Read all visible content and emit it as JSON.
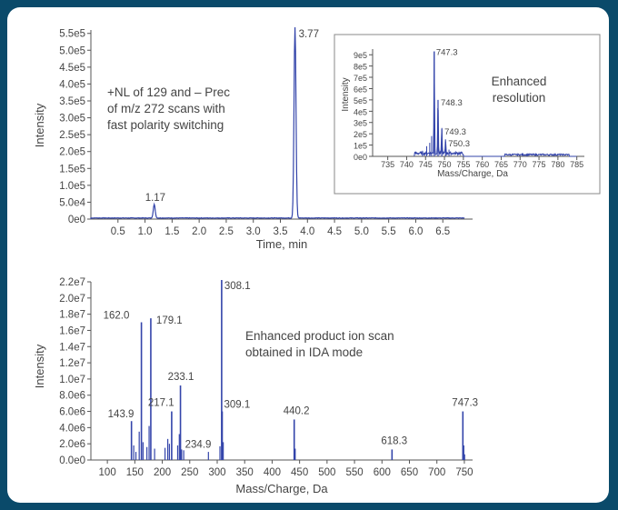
{
  "chart_data": [
    {
      "type": "line",
      "xlabel": "Time, min",
      "ylabel": "Intensity",
      "xlim": [
        0.0,
        7.05
      ],
      "ylim": [
        0,
        560000
      ],
      "xticks": [
        "0.5",
        "1.0",
        "1.5",
        "2.0",
        "2.5",
        "3.0",
        "3.5",
        "4.0",
        "4.5",
        "5.0",
        "5.5",
        "6.0",
        "6.5"
      ],
      "yticks": [
        "0e0",
        "5.0e4",
        "1.0e5",
        "1.5e5",
        "2.0e5",
        "2.5e5",
        "3.0e5",
        "3.5e5",
        "4.0e5",
        "4.5e5",
        "5.0e5",
        "5.5e5"
      ],
      "peaks": [
        {
          "x": 1.17,
          "y": 40000,
          "label": "1.17"
        },
        {
          "x": 3.77,
          "y": 580000,
          "label": "3.77"
        }
      ],
      "note_lines": [
        "+NL of 129 and – Prec",
        "of m/z 272 scans with",
        "fast polarity switching"
      ]
    },
    {
      "type": "line",
      "xlabel": "Mass/Charge, Da",
      "ylabel": "Intensity",
      "xlim": [
        731,
        787
      ],
      "ylim": [
        0,
        950000
      ],
      "xticks": [
        "735",
        "740",
        "745",
        "750",
        "755",
        "760",
        "765",
        "770",
        "775",
        "780",
        "785"
      ],
      "yticks": [
        "0e0",
        "1e5",
        "2e5",
        "3e5",
        "4e5",
        "5e5",
        "6e5",
        "7e5",
        "8e5",
        "9e5"
      ],
      "peaks": [
        {
          "x": 747.3,
          "y": 930000,
          "label": "747.3"
        },
        {
          "x": 748.3,
          "y": 500000,
          "label": "748.3"
        },
        {
          "x": 749.3,
          "y": 240000,
          "label": "749.3"
        },
        {
          "x": 750.3,
          "y": 130000,
          "label": "750.3"
        }
      ],
      "note_lines": [
        "Enhanced",
        "resolution"
      ]
    },
    {
      "type": "bar",
      "xlabel": "Mass/Charge, Da",
      "ylabel": "Intensity",
      "xlim": [
        70,
        765
      ],
      "ylim": [
        0,
        22000000
      ],
      "xticks": [
        "100",
        "150",
        "200",
        "250",
        "300",
        "350",
        "400",
        "450",
        "500",
        "550",
        "600",
        "650",
        "700",
        "750"
      ],
      "yticks": [
        "0.0e0",
        "2.0e6",
        "4.0e6",
        "6.0e6",
        "8.0e6",
        "1.0e7",
        "1.2e7",
        "1.4e7",
        "1.6e7",
        "1.8e7",
        "2.0e7",
        "2.2e7"
      ],
      "peaks": [
        {
          "x": 143.9,
          "y": 4800000,
          "label": "143.9"
        },
        {
          "x": 162.0,
          "y": 17000000,
          "label": "162.0"
        },
        {
          "x": 179.1,
          "y": 17500000,
          "label": "179.1"
        },
        {
          "x": 217.1,
          "y": 6000000,
          "label": "217.1"
        },
        {
          "x": 233.1,
          "y": 9200000,
          "label": "233.1"
        },
        {
          "x": 234.9,
          "y": 1300000,
          "label": "234.9"
        },
        {
          "x": 308.1,
          "y": 22500000,
          "label": "308.1"
        },
        {
          "x": 309.1,
          "y": 6000000,
          "label": "309.1"
        },
        {
          "x": 440.2,
          "y": 5000000,
          "label": "440.2"
        },
        {
          "x": 618.3,
          "y": 1300000,
          "label": "618.3"
        },
        {
          "x": 747.3,
          "y": 6000000,
          "label": "747.3"
        }
      ],
      "note_lines": [
        "Enhanced product ion scan",
        "obtained in IDA mode"
      ]
    }
  ]
}
